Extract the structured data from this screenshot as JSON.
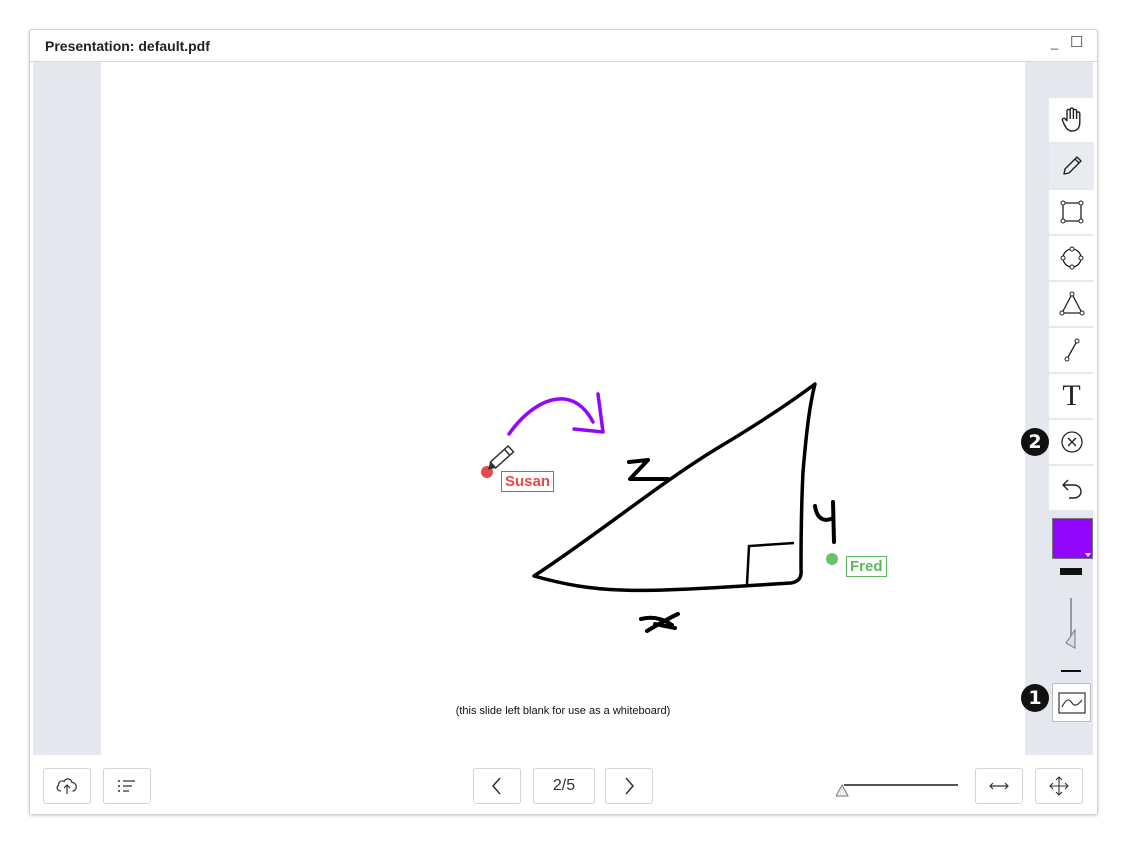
{
  "window": {
    "title": "Presentation: default.pdf",
    "minimize_glyph": "_",
    "maximize_glyph": "☐"
  },
  "slide": {
    "caption": "(this slide left blank for use as a whiteboard)",
    "annotations": {
      "hypotenuse": "z",
      "vertical_side": "y",
      "base_side": "x"
    },
    "cursors": [
      {
        "name": "Susan",
        "color": "#e84a4a"
      },
      {
        "name": "Fred",
        "color": "#5cb85c"
      }
    ]
  },
  "toolbar": {
    "tools": [
      {
        "name": "hand-icon"
      },
      {
        "name": "pencil-icon",
        "active": true
      },
      {
        "name": "rectangle-icon"
      },
      {
        "name": "ellipse-icon"
      },
      {
        "name": "triangle-icon"
      },
      {
        "name": "line-icon"
      },
      {
        "name": "text-icon",
        "glyph": "T"
      },
      {
        "name": "clear-icon"
      },
      {
        "name": "undo-icon"
      }
    ],
    "pen_color": "#9207fc",
    "smooth_icon": "smooth-line-icon"
  },
  "callouts": {
    "one": "1",
    "two": "2"
  },
  "bottom": {
    "page_indicator": "2/5",
    "upload_icon": "cloud-upload-icon",
    "list_icon": "slide-list-icon",
    "prev_icon": "chevron-left-icon",
    "next_icon": "chevron-right-icon",
    "fit_width_icon": "fit-width-icon",
    "fit_page_icon": "move-icon"
  }
}
